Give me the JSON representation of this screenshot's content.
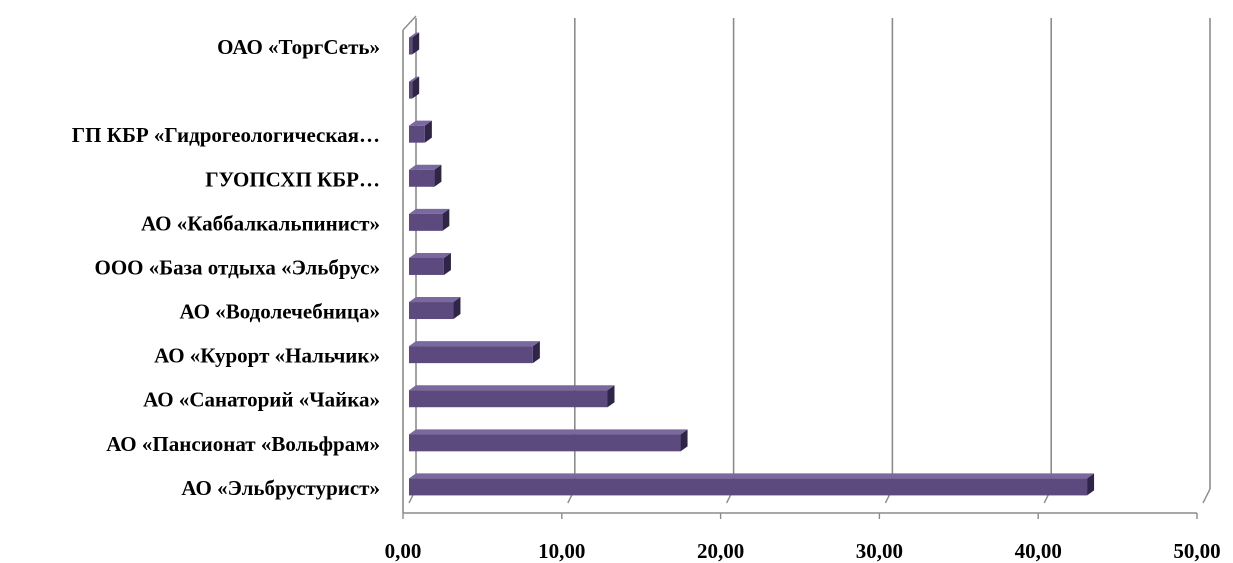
{
  "chart_data": {
    "type": "bar",
    "orientation": "horizontal",
    "style": "3d",
    "categories": [
      "ОАО «ТоргСеть»",
      "",
      "ГП КБР «Гидрогеологическая…",
      "ГУОПСХП КБР…",
      "АО «Каббалкальпинист»",
      "ООО «База отдыха «Эльбрус»",
      "АО «Водолечебница»",
      "АО «Курорт «Нальчик»",
      "АО «Санаторий «Чайка»",
      "АО «Пансионат «Вольфрам»",
      "АО «Эльбрустурист»"
    ],
    "values": [
      0.2,
      0.2,
      1.0,
      1.6,
      2.1,
      2.2,
      2.8,
      7.8,
      12.5,
      17.1,
      42.7
    ],
    "x_ticks": [
      "0,00",
      "10,00",
      "20,00",
      "30,00",
      "40,00",
      "50,00"
    ],
    "xlim": [
      0,
      50
    ],
    "grid": true,
    "legend": "none",
    "colors": {
      "bar_front": "#5c4a7e",
      "bar_top": "#7a68a0",
      "bar_side": "#2f2546",
      "gridline": "#8c8c8c",
      "axis": "#8c8c8c"
    }
  }
}
